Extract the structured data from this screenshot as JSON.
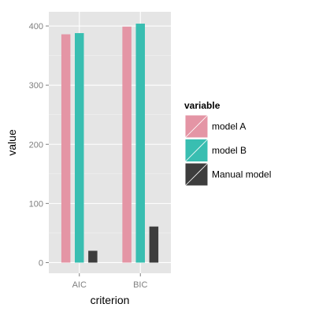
{
  "chart_data": {
    "type": "bar",
    "xlabel": "criterion",
    "ylabel": "value",
    "categories": [
      "AIC",
      "BIC"
    ],
    "series": [
      {
        "name": "model A",
        "values": [
          386,
          399
        ],
        "color": "#E495A5"
      },
      {
        "name": "model B",
        "values": [
          388,
          404
        ],
        "color": "#39BEB1"
      },
      {
        "name": "Manual model",
        "values": [
          20,
          61
        ],
        "color": "#3D3D3D"
      }
    ],
    "ylim": [
      -18,
      424
    ],
    "yticks": [
      0,
      100,
      200,
      300,
      400
    ],
    "grid": true,
    "legend": {
      "title": "variable",
      "position": "right"
    }
  }
}
